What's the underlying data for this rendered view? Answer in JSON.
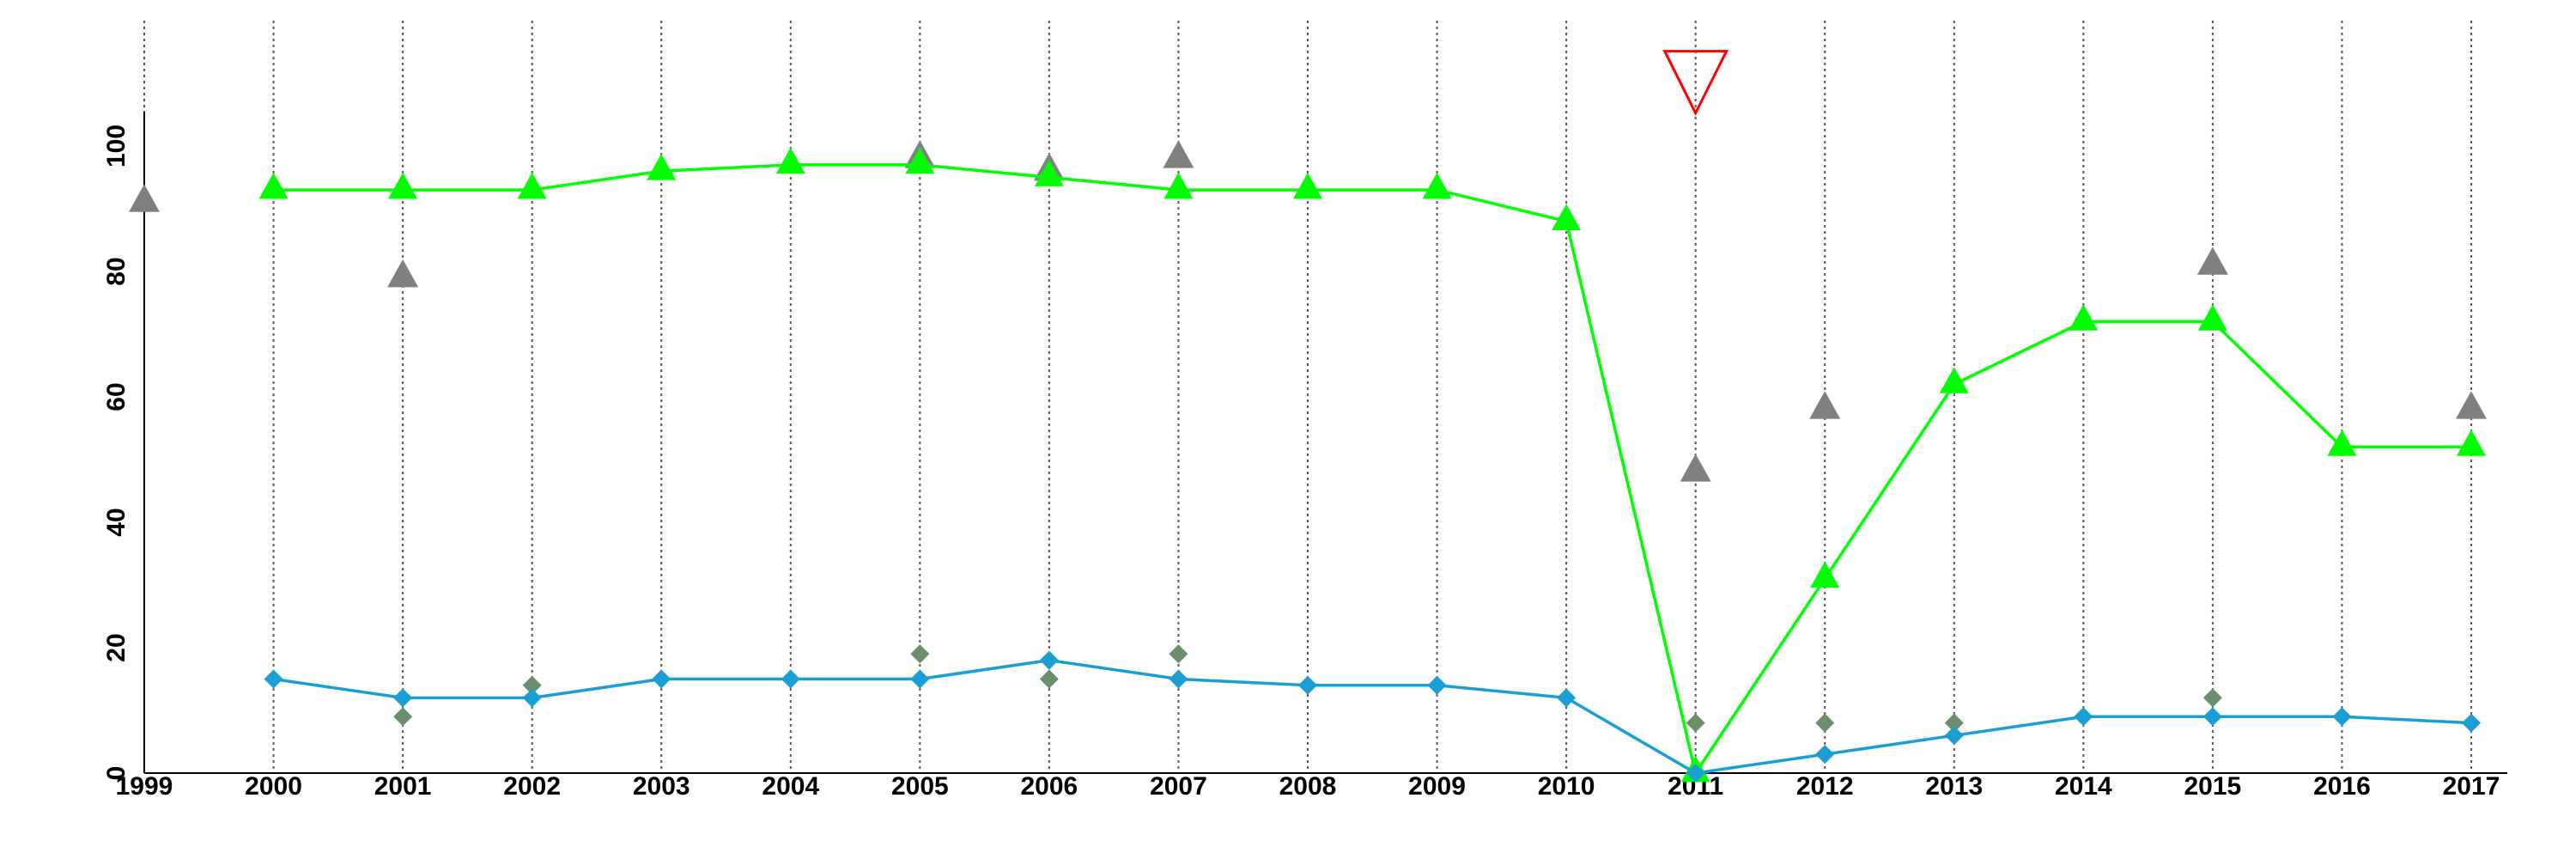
{
  "chart_data": {
    "type": "line",
    "title": "",
    "xlabel": "",
    "ylabel": "",
    "xlim": [
      1999,
      2017
    ],
    "ylim": [
      0,
      110
    ],
    "x_ticks": [
      "1999",
      "2000",
      "2001",
      "2002",
      "2003",
      "2004",
      "2005",
      "2006",
      "2007",
      "2008",
      "2009",
      "2010",
      "2011",
      "2012",
      "2013",
      "2014",
      "2015",
      "2016",
      "2017"
    ],
    "y_ticks": [
      "0",
      "20",
      "40",
      "60",
      "80",
      "100"
    ],
    "grid": "vertical dotted lines at each year",
    "legend": "none",
    "series": [
      {
        "kind": "line",
        "marker": "triangle-up",
        "color": "#00ff00",
        "points": [
          [
            2000,
            93
          ],
          [
            2001,
            93
          ],
          [
            2002,
            93
          ],
          [
            2003,
            96
          ],
          [
            2004,
            97
          ],
          [
            2005,
            97
          ],
          [
            2006,
            95
          ],
          [
            2007,
            93
          ],
          [
            2008,
            93
          ],
          [
            2009,
            93
          ],
          [
            2010,
            88
          ],
          [
            2011,
            0
          ],
          [
            2012,
            31
          ],
          [
            2013,
            62
          ],
          [
            2014,
            72
          ],
          [
            2015,
            72
          ],
          [
            2016,
            52
          ],
          [
            2017,
            52
          ]
        ]
      },
      {
        "kind": "line",
        "marker": "diamond",
        "color": "#1a9fd4",
        "points": [
          [
            2000,
            15
          ],
          [
            2001,
            12
          ],
          [
            2002,
            12
          ],
          [
            2003,
            15
          ],
          [
            2004,
            15
          ],
          [
            2005,
            15
          ],
          [
            2006,
            18
          ],
          [
            2007,
            15
          ],
          [
            2008,
            14
          ],
          [
            2009,
            14
          ],
          [
            2010,
            12
          ],
          [
            2011,
            0
          ],
          [
            2012,
            3
          ],
          [
            2013,
            6
          ],
          [
            2014,
            9
          ],
          [
            2015,
            9
          ],
          [
            2016,
            9
          ],
          [
            2017,
            8
          ]
        ]
      },
      {
        "kind": "scatter",
        "marker": "triangle-up",
        "color": "#808080",
        "points": [
          [
            1999,
            91
          ],
          [
            2001,
            79
          ],
          [
            2005,
            98
          ],
          [
            2006,
            96
          ],
          [
            2007,
            98
          ],
          [
            2011,
            48
          ],
          [
            2012,
            58
          ],
          [
            2015,
            81
          ],
          [
            2017,
            58
          ]
        ]
      },
      {
        "kind": "scatter",
        "marker": "diamond",
        "color": "#6b8e6b",
        "points": [
          [
            2001,
            9
          ],
          [
            2002,
            14
          ],
          [
            2005,
            19
          ],
          [
            2006,
            15
          ],
          [
            2007,
            19
          ],
          [
            2011,
            8
          ],
          [
            2012,
            8
          ],
          [
            2013,
            8
          ],
          [
            2015,
            12
          ]
        ]
      }
    ],
    "annotations": [
      {
        "marker": "triangle-down-outline",
        "color": "#ff0000",
        "x": 2011,
        "y": 112
      }
    ]
  }
}
